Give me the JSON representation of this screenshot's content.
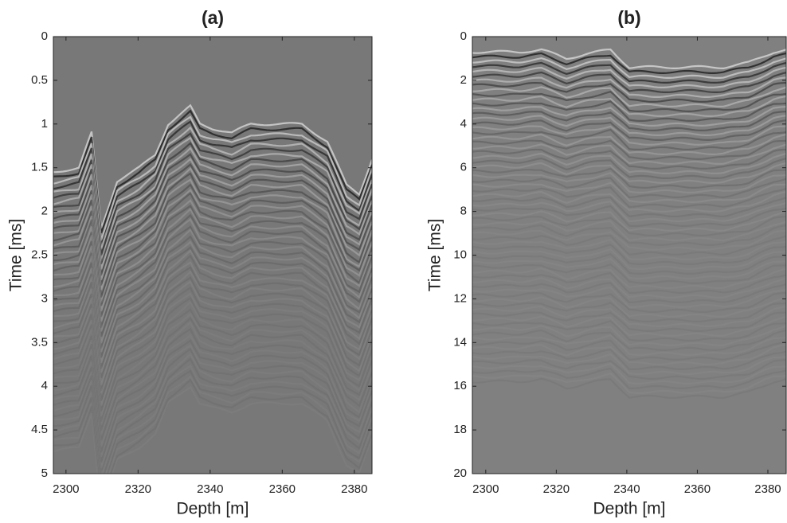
{
  "chart_data": [
    {
      "type": "image",
      "title": "(a)",
      "xlabel": "Depth [m]",
      "ylabel": "Time [ms]",
      "xlim": [
        2296.5,
        2384.9
      ],
      "xticks": [
        2300,
        2320,
        2340,
        2360,
        2380
      ],
      "ylim": [
        0,
        5
      ],
      "yticks": [
        0,
        0.5,
        1,
        1.5,
        2,
        2.5,
        3,
        3.5,
        4,
        4.5,
        5
      ],
      "y_inverted": true
    },
    {
      "type": "image",
      "title": "(b)",
      "xlabel": "Depth [m]",
      "ylabel": "Time [ms]",
      "xlim": [
        2296.2,
        2385.2
      ],
      "xticks": [
        2300,
        2320,
        2340,
        2360,
        2380
      ],
      "ylim": [
        0,
        20
      ],
      "yticks": [
        0,
        2,
        4,
        6,
        8,
        10,
        12,
        14,
        16,
        18,
        20
      ],
      "y_inverted": true
    }
  ]
}
